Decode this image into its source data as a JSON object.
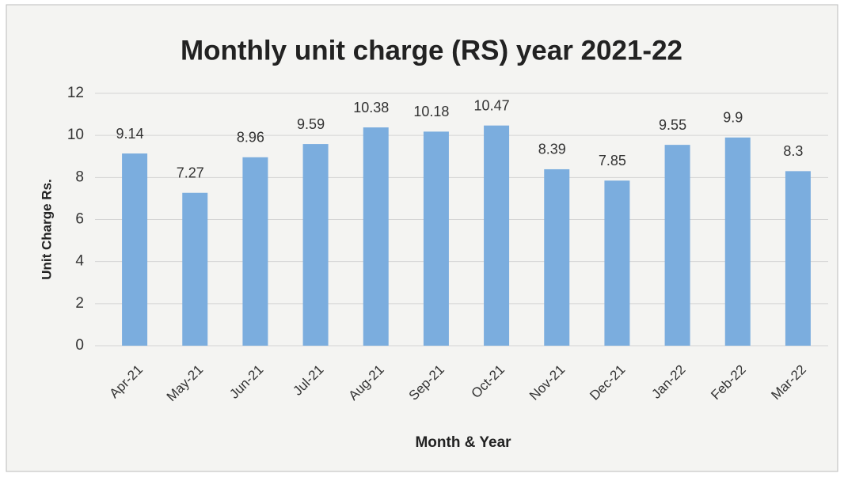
{
  "chart_data": {
    "type": "bar",
    "title": "Monthly unit charge (RS) year 2021-22",
    "x_label": "Month & Year",
    "y_label": "Unit Charge Rs.",
    "categories": [
      "Apr-21",
      "May-21",
      "Jun-21",
      "Jul-21",
      "Aug-21",
      "Sep-21",
      "Oct-21",
      "Nov-21",
      "Dec-21",
      "Jan-22",
      "Feb-22",
      "Mar-22"
    ],
    "values": [
      9.14,
      7.27,
      8.96,
      9.59,
      10.38,
      10.18,
      10.47,
      8.39,
      7.85,
      9.55,
      9.9,
      8.3
    ],
    "color": "#7badde",
    "ylim": [
      0,
      12
    ],
    "yticks": [
      0,
      2,
      4,
      6,
      8,
      10,
      12
    ],
    "grid": true
  }
}
